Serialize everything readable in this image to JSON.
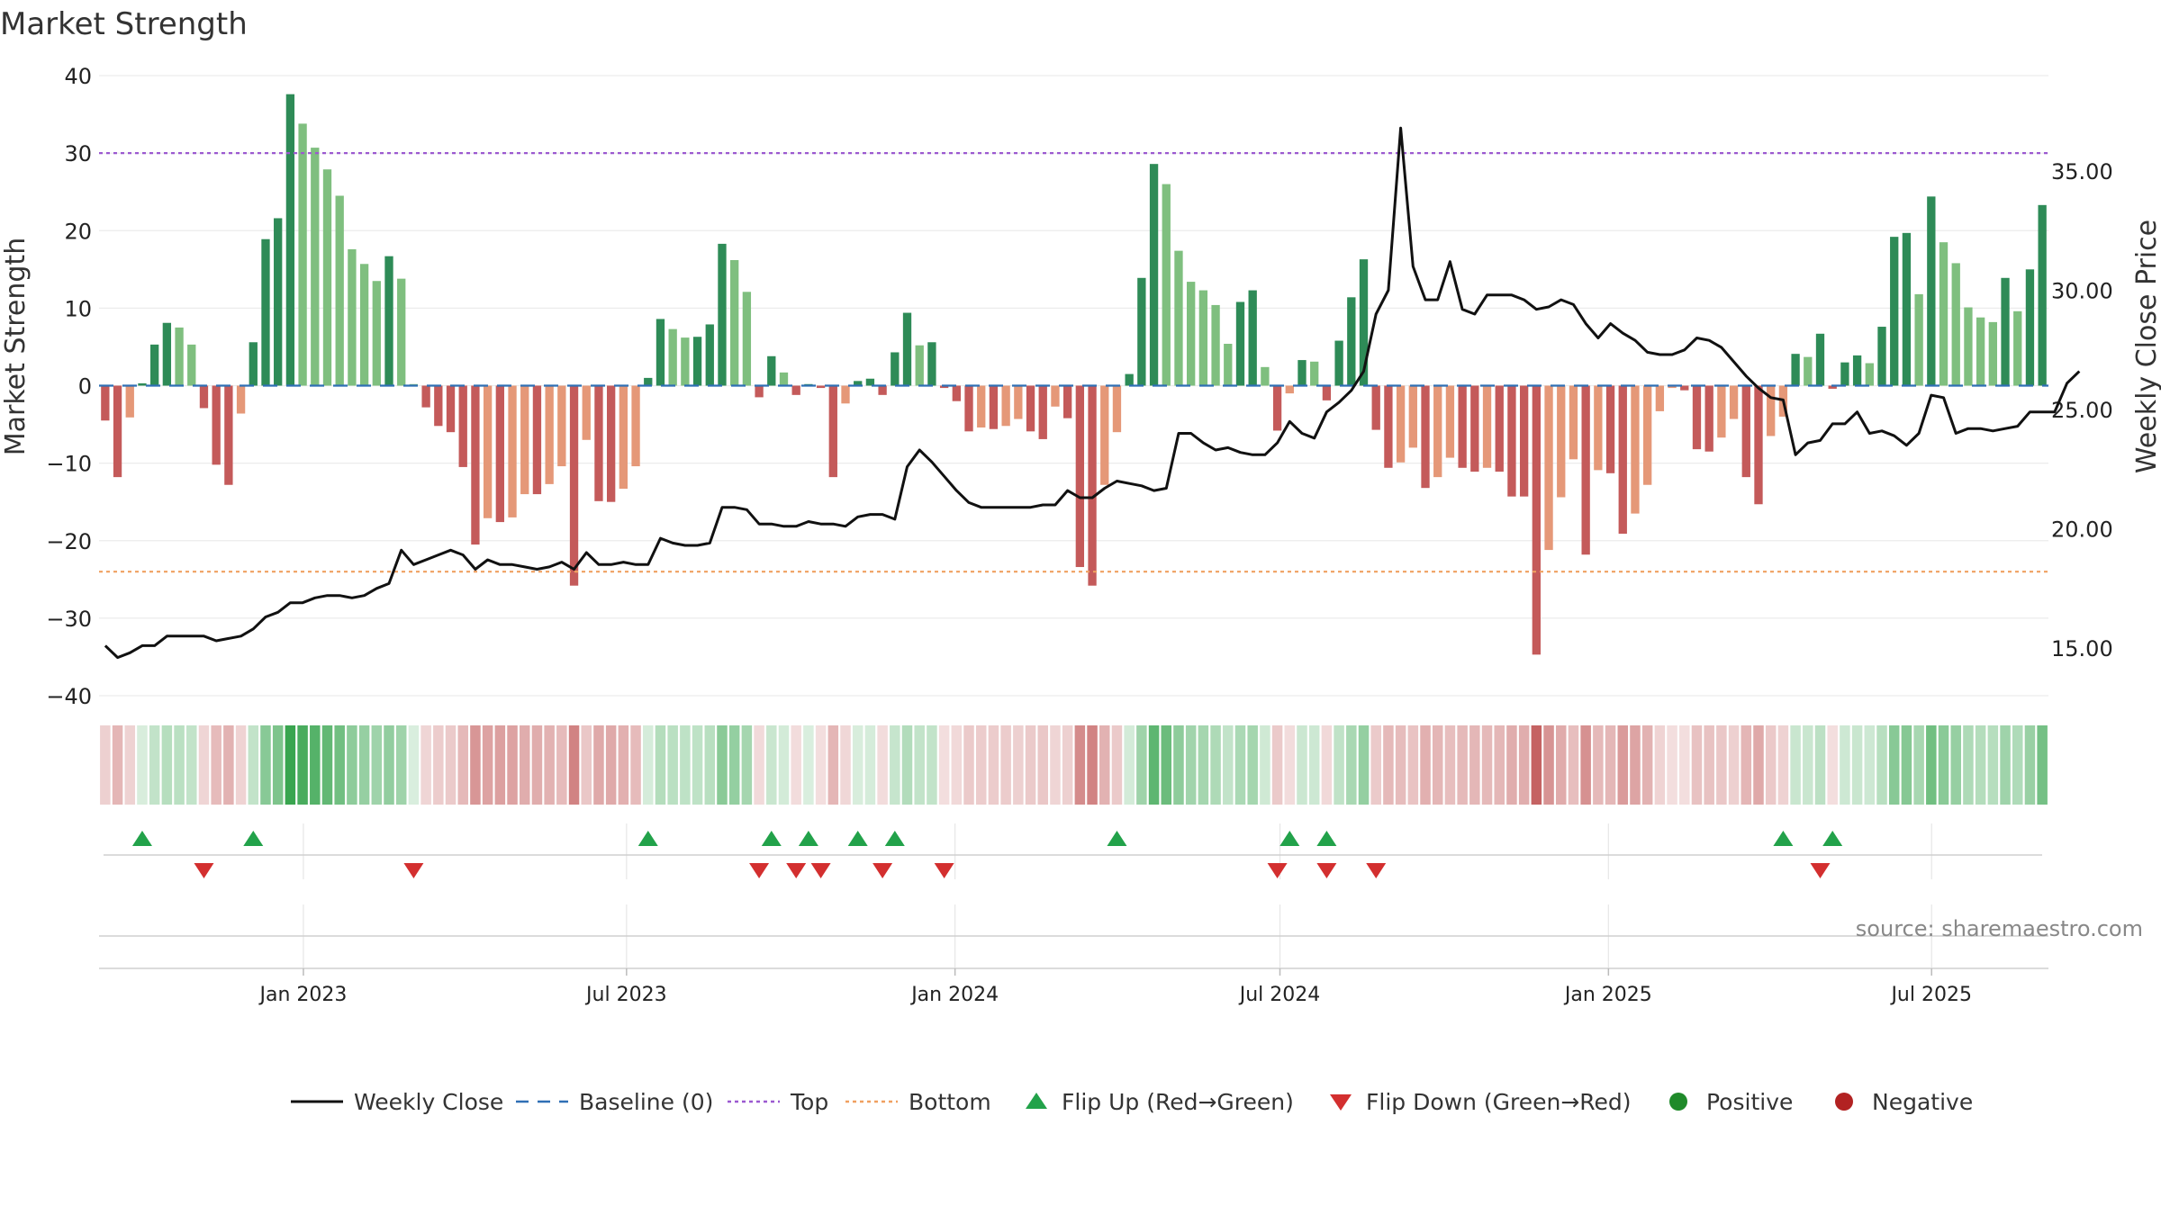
{
  "chart_data": {
    "type": "bar",
    "title": "Market Strength",
    "ylabel_left": "Market Strength",
    "ylabel_right": "Weekly Close Price",
    "ylim_left": [
      -40,
      40
    ],
    "ylim_right": [
      13.0,
      39.0
    ],
    "left_ticks": [
      "40",
      "30",
      "20",
      "10",
      "0",
      "−10",
      "−20",
      "−30",
      "−40"
    ],
    "right_ticks": [
      "35.00",
      "30.00",
      "25.00",
      "20.00",
      "15.00"
    ],
    "top_level": 30,
    "bottom_level": -24,
    "date_range": [
      "2022-09-12",
      "2025-09-01"
    ],
    "x_ticks": [
      "Jan 2023",
      "Jul 2023",
      "Jan 2024",
      "Jul 2024",
      "Jan 2025",
      "Jul 2025"
    ],
    "strength": [
      -4.5,
      -11.8,
      -4.1,
      0.3,
      5.3,
      8.1,
      7.5,
      5.3,
      -2.9,
      -10.2,
      -12.8,
      -3.6,
      5.6,
      18.9,
      21.6,
      37.6,
      33.8,
      30.7,
      27.9,
      24.5,
      17.6,
      15.7,
      13.5,
      16.7,
      13.8,
      0.2,
      -2.8,
      -5.2,
      -6.0,
      -10.5,
      -20.5,
      -17.1,
      -17.6,
      -17.0,
      -14.0,
      -14.0,
      -12.7,
      -10.4,
      -25.8,
      -7.0,
      -14.9,
      -15.0,
      -13.3,
      -10.4,
      1.0,
      8.6,
      7.3,
      6.2,
      6.3,
      7.9,
      18.3,
      16.2,
      12.1,
      -1.5,
      3.8,
      1.7,
      -1.2,
      0.2,
      -0.3,
      -11.8,
      -2.3,
      0.6,
      0.9,
      -1.2,
      4.3,
      9.4,
      5.2,
      5.6,
      -0.3,
      -2.0,
      -5.9,
      -5.4,
      -5.6,
      -5.2,
      -4.3,
      -5.9,
      -6.9,
      -2.7,
      -4.2,
      -23.4,
      -25.8,
      -12.8,
      -6.0,
      1.5,
      13.9,
      28.6,
      26.0,
      17.4,
      13.4,
      12.3,
      10.4,
      5.4,
      10.8,
      12.3,
      2.4,
      -5.8,
      -1.0,
      3.3,
      3.1,
      -1.9,
      5.8,
      11.4,
      16.3,
      -5.7,
      -10.6,
      -9.9,
      -8.0,
      -13.2,
      -11.8,
      -9.3,
      -10.6,
      -11.1,
      -10.6,
      -11.1,
      -14.3,
      -14.3,
      -34.7,
      -21.2,
      -14.4,
      -9.5,
      -21.8,
      -10.9,
      -11.3,
      -19.1,
      -16.5,
      -12.8,
      -3.3,
      -0.3,
      -0.6,
      -8.2,
      -8.5,
      -6.7,
      -4.3,
      -11.8,
      -15.3,
      -6.5,
      -4.0,
      4.1,
      3.7,
      6.7,
      -0.4,
      3.0,
      3.9,
      2.9,
      7.6,
      19.2,
      19.7,
      11.8,
      24.4,
      18.5,
      15.8,
      10.1,
      8.8,
      8.2,
      13.9,
      9.6,
      15.0,
      23.3
    ],
    "weekly_close": [
      15.1,
      14.6,
      14.8,
      15.1,
      15.1,
      15.5,
      15.5,
      15.5,
      15.5,
      15.3,
      15.4,
      15.5,
      15.8,
      16.3,
      16.5,
      16.9,
      16.9,
      17.1,
      17.2,
      17.2,
      17.1,
      17.2,
      17.5,
      17.7,
      19.1,
      18.5,
      18.7,
      18.9,
      19.1,
      18.9,
      18.3,
      18.7,
      18.5,
      18.5,
      18.4,
      18.3,
      18.4,
      18.6,
      18.3,
      19.0,
      18.5,
      18.5,
      18.6,
      18.5,
      18.5,
      19.6,
      19.4,
      19.3,
      19.3,
      19.4,
      20.9,
      20.9,
      20.8,
      20.2,
      20.2,
      20.1,
      20.1,
      20.3,
      20.2,
      20.2,
      20.1,
      20.5,
      20.6,
      20.6,
      20.4,
      22.6,
      23.3,
      22.8,
      22.2,
      21.6,
      21.1,
      20.9,
      20.9,
      20.9,
      20.9,
      20.9,
      21.0,
      21.0,
      21.6,
      21.3,
      21.3,
      21.7,
      22.0,
      21.9,
      21.8,
      21.6,
      21.7,
      24.0,
      24.0,
      23.6,
      23.3,
      23.4,
      23.2,
      23.1,
      23.1,
      23.6,
      24.5,
      24.0,
      23.8,
      24.9,
      25.3,
      25.8,
      26.6,
      29.0,
      30.0,
      36.8,
      31.0,
      29.6,
      29.6,
      31.2,
      29.2,
      29.0,
      29.8,
      29.8,
      29.8,
      29.6,
      29.2,
      29.3,
      29.6,
      29.4,
      28.6,
      28.0,
      28.6,
      28.2,
      27.9,
      27.4,
      27.3,
      27.3,
      27.5,
      28.0,
      27.9,
      27.6,
      27.0,
      26.4,
      25.9,
      25.5,
      25.4,
      23.1,
      23.6,
      23.7,
      24.4,
      24.4,
      24.9,
      24.0,
      24.1,
      23.9,
      23.5,
      24.0,
      25.6,
      25.5,
      24.0,
      24.2,
      24.2,
      24.1,
      24.2,
      24.3,
      24.9,
      24.9,
      24.9,
      26.1,
      26.6
    ],
    "flip_up_weeks": [
      3,
      12,
      44,
      54,
      57,
      61,
      64,
      82,
      96,
      99,
      136,
      140
    ],
    "flip_down_weeks": [
      8,
      25,
      53,
      56,
      58,
      63,
      68,
      95,
      99,
      103,
      139
    ],
    "legend": [
      "Weekly Close",
      "Baseline (0)",
      "Top",
      "Bottom",
      "Flip Up (Red→Green)",
      "Flip Down (Green→Red)",
      "Positive",
      "Negative"
    ]
  },
  "source": "source: sharemaestro.com",
  "colors": {
    "dark_green": "#2e8b57",
    "light_green": "#7fbf7f",
    "dark_red": "#c45a5a",
    "light_red": "#e59878",
    "close_line": "#111111",
    "baseline": "#2f6fb5",
    "top": "#9b59d0",
    "bottom": "#f0a060",
    "flip_up": "#22a24a",
    "flip_down": "#d32f2f",
    "positive": "#1f8a2a",
    "negative": "#b22222"
  }
}
